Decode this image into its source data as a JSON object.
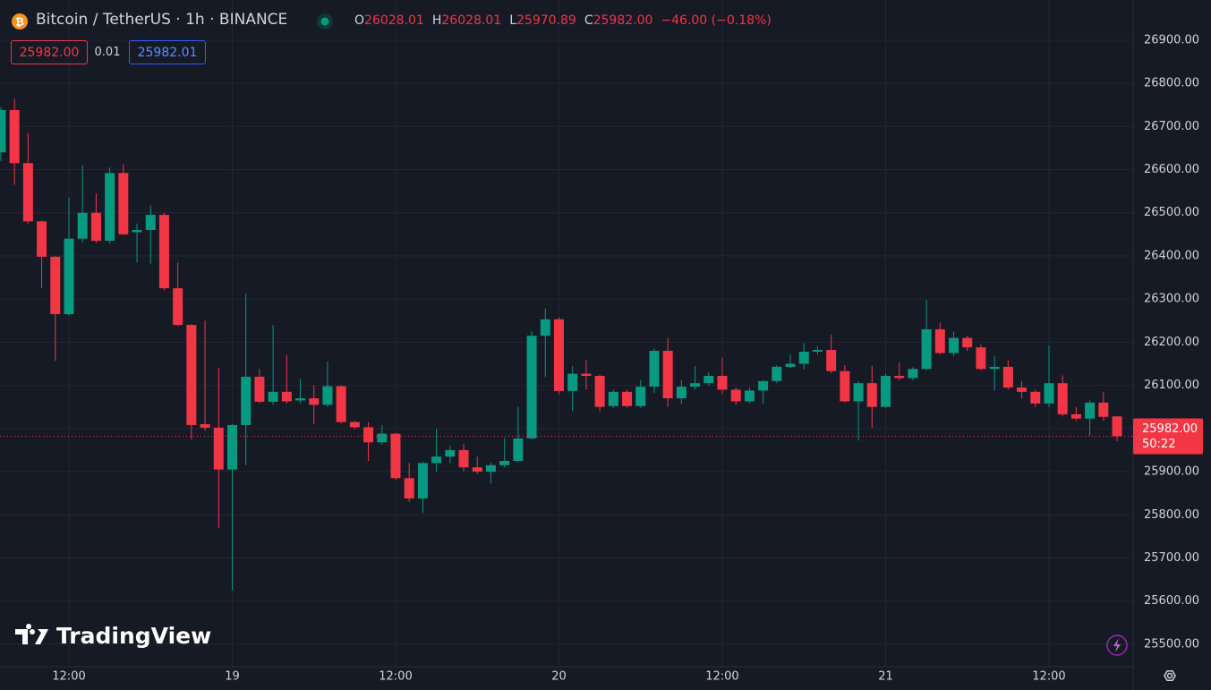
{
  "chart_data": {
    "type": "candlestick",
    "header": {
      "symbol": "Bitcoin / TetherUS · 1h · BINANCE",
      "open_letter": "O",
      "open": "26028.01",
      "high_letter": "H",
      "high": "26028.01",
      "low_letter": "L",
      "low": "25970.89",
      "close_letter": "C",
      "close": "25982.00",
      "change": "−46.00 (−0.18%)"
    },
    "order_buttons": {
      "sell": "25982.00",
      "spread": "0.01",
      "buy": "25982.01"
    },
    "price_tag": {
      "price": "25982.00",
      "countdown": "50:22"
    },
    "logo": "TradingView",
    "up_color": "#089981",
    "down_color": "#f23645",
    "categories": [
      null,
      null,
      null,
      null,
      null,
      "12:00",
      null,
      null,
      null,
      null,
      null,
      null,
      null,
      null,
      null,
      null,
      null,
      "19",
      null,
      null,
      null,
      null,
      null,
      null,
      null,
      null,
      null,
      null,
      null,
      "12:00",
      null,
      null,
      null,
      null,
      null,
      null,
      null,
      null,
      null,
      null,
      null,
      "20",
      null,
      null,
      null,
      null,
      null,
      null,
      null,
      null,
      null,
      null,
      null,
      "12:00",
      null,
      null,
      null,
      null,
      null,
      null,
      null,
      null,
      null,
      null,
      null,
      "21",
      null,
      null,
      null,
      null,
      null,
      null,
      null,
      null,
      null,
      null,
      null,
      "12:00",
      null,
      null,
      null,
      null,
      null
    ],
    "open": [
      26640,
      26738,
      26615,
      26480,
      26398,
      26265,
      26440,
      26500,
      26435,
      26592,
      26455,
      26460,
      26495,
      26325,
      26240,
      26010,
      26002,
      25905,
      26008,
      26120,
      26062,
      26085,
      26065,
      26070,
      26055,
      26098,
      26015,
      26003,
      25968,
      25988,
      25885,
      25838,
      25920,
      25935,
      25950,
      25910,
      25900,
      25915,
      25925,
      25977,
      26215,
      26253,
      26087,
      26127,
      26122,
      26052,
      26085,
      26052,
      26097,
      26180,
      26070,
      26097,
      26105,
      26122,
      26090,
      26063,
      26088,
      26110,
      26143,
      26150,
      26178,
      26182,
      26133,
      26063,
      26105,
      26050,
      26122,
      26117,
      26138,
      26230,
      26175,
      26210,
      26188,
      26138,
      26143,
      26095,
      26085,
      26058,
      26105,
      26033,
      26023,
      26060,
      26028.01
    ],
    "high": [
      26745,
      26765,
      26685,
      26482,
      26400,
      26535,
      26610,
      26545,
      26605,
      26612,
      26475,
      26517,
      26500,
      26385,
      26242,
      26250,
      26140,
      26010,
      26312,
      26138,
      26240,
      26170,
      26115,
      26100,
      26155,
      26100,
      26018,
      26015,
      26008,
      25990,
      25920,
      25922,
      26000,
      25960,
      25965,
      25935,
      25920,
      25978,
      26050,
      26225,
      26278,
      26258,
      26145,
      26158,
      26125,
      26090,
      26090,
      26112,
      26185,
      26210,
      26112,
      26145,
      26130,
      26165,
      26095,
      26095,
      26112,
      26147,
      26172,
      26198,
      26190,
      26218,
      26147,
      26110,
      26145,
      26127,
      26153,
      26142,
      26298,
      26245,
      26225,
      26215,
      26195,
      26168,
      26158,
      26110,
      26090,
      26192,
      26123,
      26050,
      26065,
      26085,
      26028.01
    ],
    "low": [
      26620,
      26565,
      26475,
      26325,
      26157,
      26262,
      26432,
      26430,
      26428,
      26448,
      26385,
      26382,
      26320,
      26237,
      25975,
      25995,
      25770,
      25625,
      25915,
      26058,
      26055,
      26058,
      26058,
      26010,
      26050,
      26012,
      25998,
      25925,
      25962,
      25880,
      25830,
      25805,
      25900,
      25920,
      25900,
      25895,
      25873,
      25910,
      25922,
      25975,
      26120,
      26080,
      26040,
      26090,
      26040,
      26048,
      26048,
      26048,
      26082,
      26050,
      26057,
      26090,
      26100,
      26080,
      26055,
      26058,
      26058,
      26105,
      26140,
      26137,
      26172,
      26128,
      26060,
      25972,
      26002,
      26048,
      26112,
      26112,
      26135,
      26172,
      26168,
      26180,
      26135,
      26088,
      26090,
      26070,
      26050,
      26050,
      26028,
      26018,
      25983,
      26018,
      25970.89
    ],
    "close": [
      26738,
      26615,
      26480,
      26398,
      26265,
      26440,
      26500,
      26435,
      26592,
      26450,
      26460,
      26495,
      26325,
      26240,
      26008,
      26002,
      25905,
      26008,
      26120,
      26062,
      26085,
      26063,
      26070,
      26055,
      26098,
      26015,
      26003,
      25968,
      25988,
      25885,
      25838,
      25920,
      25935,
      25950,
      25910,
      25900,
      25915,
      25925,
      25977,
      26215,
      26253,
      26087,
      26127,
      26122,
      26050,
      26085,
      26052,
      26097,
      26180,
      26070,
      26097,
      26105,
      26122,
      26090,
      26063,
      26088,
      26110,
      26143,
      26150,
      26178,
      26182,
      26133,
      26063,
      26105,
      26050,
      26122,
      26117,
      26138,
      26230,
      26175,
      26210,
      26188,
      26138,
      26143,
      26095,
      26085,
      26058,
      26105,
      26033,
      26023,
      26060,
      26027,
      25982
    ],
    "ylim": [
      25448,
      26993
    ],
    "yticks": [
      {
        "value": 25500,
        "label": "25500.00"
      },
      {
        "value": 25600,
        "label": "25600.00"
      },
      {
        "value": 25700,
        "label": "25700.00"
      },
      {
        "value": 25800,
        "label": "25800.00"
      },
      {
        "value": 25900,
        "label": "25900.00"
      },
      {
        "value": 26000,
        "label": "26000.00"
      },
      {
        "value": 26100,
        "label": "26100.00"
      },
      {
        "value": 26200,
        "label": "26200.00"
      },
      {
        "value": 26300,
        "label": "26300.00"
      },
      {
        "value": 26400,
        "label": "26400.00"
      },
      {
        "value": 26500,
        "label": "26500.00"
      },
      {
        "value": 26600,
        "label": "26600.00"
      },
      {
        "value": 26700,
        "label": "26700.00"
      },
      {
        "value": 26800,
        "label": "26800.00"
      },
      {
        "value": 26900,
        "label": "26900.00"
      }
    ],
    "grid": true
  }
}
